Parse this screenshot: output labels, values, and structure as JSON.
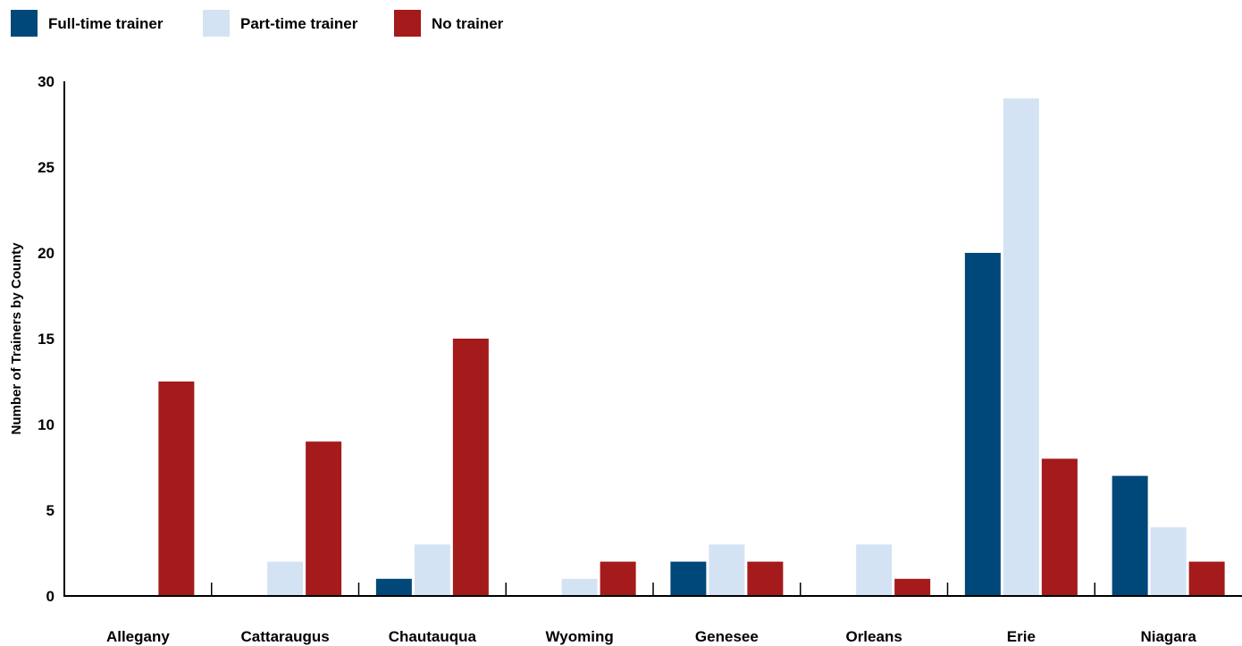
{
  "chart_data": {
    "type": "bar",
    "title": "",
    "xlabel": "",
    "ylabel": "Number of Trainers by County",
    "ylim": [
      0,
      30
    ],
    "yticks": [
      0,
      5,
      10,
      15,
      20,
      25,
      30
    ],
    "grid": false,
    "legend_position": "top-left",
    "categories": [
      "Allegany",
      "Cattaraugus",
      "Chautauqua",
      "Wyoming",
      "Genesee",
      "Orleans",
      "Erie",
      "Niagara"
    ],
    "series": [
      {
        "name": "Full-time trainer",
        "color": "#00487a",
        "values": [
          0,
          0,
          1,
          0,
          2,
          0,
          20,
          7
        ]
      },
      {
        "name": "Part-time trainer",
        "color": "#d3e3f4",
        "values": [
          0,
          2,
          3,
          1,
          3,
          3,
          29,
          4
        ]
      },
      {
        "name": "No trainer",
        "color": "#a51a1b",
        "values": [
          12.5,
          9,
          15,
          2,
          2,
          1,
          8,
          2
        ]
      }
    ]
  }
}
